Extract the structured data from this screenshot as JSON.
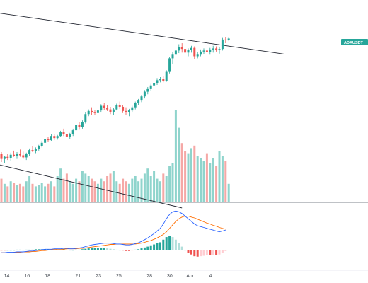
{
  "chart_data": {
    "type": "candlestick",
    "symbol_label": "ADAUSDT",
    "colors": {
      "up": "#26a69a",
      "down": "#ef5350",
      "volume_up": "#8fd4cc",
      "volume_down": "#f5a8a6",
      "macd_line": "#2962ff",
      "signal_line": "#ff6d00",
      "hist_up": "#26a69a",
      "hist_up_light": "#b2dfdb",
      "hist_down": "#ef5350",
      "hist_down_light": "#ffcdd2",
      "trendline": "#1e222d",
      "last_price_tag": "#26a69a",
      "pane_separator": "#555b66"
    },
    "x_axis": {
      "tick_labels": [
        "14",
        "16",
        "18",
        "21",
        "23",
        "25",
        "28",
        "30",
        "Apr",
        "4"
      ],
      "tick_index": [
        0,
        2,
        4,
        7,
        9,
        11,
        14,
        16,
        18,
        20
      ]
    },
    "price_series": [
      {
        "o": 45,
        "h": 49,
        "l": 30,
        "c": 36
      },
      {
        "o": 36,
        "h": 42,
        "l": 28,
        "c": 40
      },
      {
        "o": 40,
        "h": 46,
        "l": 34,
        "c": 38
      },
      {
        "o": 38,
        "h": 48,
        "l": 32,
        "c": 44
      },
      {
        "o": 44,
        "h": 52,
        "l": 40,
        "c": 42
      },
      {
        "o": 42,
        "h": 49,
        "l": 36,
        "c": 46
      },
      {
        "o": 46,
        "h": 54,
        "l": 40,
        "c": 43
      },
      {
        "o": 43,
        "h": 50,
        "l": 36,
        "c": 39
      },
      {
        "o": 39,
        "h": 48,
        "l": 34,
        "c": 45
      },
      {
        "o": 45,
        "h": 56,
        "l": 42,
        "c": 53
      },
      {
        "o": 53,
        "h": 60,
        "l": 49,
        "c": 51
      },
      {
        "o": 51,
        "h": 58,
        "l": 47,
        "c": 55
      },
      {
        "o": 55,
        "h": 63,
        "l": 52,
        "c": 61
      },
      {
        "o": 61,
        "h": 71,
        "l": 58,
        "c": 67
      },
      {
        "o": 67,
        "h": 78,
        "l": 64,
        "c": 74
      },
      {
        "o": 74,
        "h": 79,
        "l": 68,
        "c": 72
      },
      {
        "o": 72,
        "h": 83,
        "l": 70,
        "c": 80
      },
      {
        "o": 80,
        "h": 84,
        "l": 72,
        "c": 76
      },
      {
        "o": 76,
        "h": 82,
        "l": 73,
        "c": 80
      },
      {
        "o": 80,
        "h": 90,
        "l": 78,
        "c": 87
      },
      {
        "o": 87,
        "h": 94,
        "l": 80,
        "c": 84
      },
      {
        "o": 84,
        "h": 88,
        "l": 76,
        "c": 79
      },
      {
        "o": 79,
        "h": 86,
        "l": 74,
        "c": 83
      },
      {
        "o": 83,
        "h": 94,
        "l": 80,
        "c": 91
      },
      {
        "o": 91,
        "h": 104,
        "l": 89,
        "c": 101
      },
      {
        "o": 101,
        "h": 106,
        "l": 92,
        "c": 97
      },
      {
        "o": 97,
        "h": 110,
        "l": 94,
        "c": 107
      },
      {
        "o": 107,
        "h": 125,
        "l": 104,
        "c": 122
      },
      {
        "o": 122,
        "h": 131,
        "l": 118,
        "c": 128
      },
      {
        "o": 128,
        "h": 135,
        "l": 120,
        "c": 126
      },
      {
        "o": 126,
        "h": 130,
        "l": 121,
        "c": 124
      },
      {
        "o": 124,
        "h": 132,
        "l": 119,
        "c": 129
      },
      {
        "o": 129,
        "h": 141,
        "l": 125,
        "c": 138
      },
      {
        "o": 138,
        "h": 144,
        "l": 130,
        "c": 134
      },
      {
        "o": 134,
        "h": 140,
        "l": 128,
        "c": 131
      },
      {
        "o": 131,
        "h": 136,
        "l": 122,
        "c": 126
      },
      {
        "o": 126,
        "h": 134,
        "l": 121,
        "c": 131
      },
      {
        "o": 131,
        "h": 142,
        "l": 129,
        "c": 139
      },
      {
        "o": 139,
        "h": 146,
        "l": 132,
        "c": 136
      },
      {
        "o": 136,
        "h": 140,
        "l": 124,
        "c": 128
      },
      {
        "o": 128,
        "h": 135,
        "l": 120,
        "c": 126
      },
      {
        "o": 126,
        "h": 132,
        "l": 118,
        "c": 129
      },
      {
        "o": 129,
        "h": 138,
        "l": 125,
        "c": 135
      },
      {
        "o": 135,
        "h": 146,
        "l": 131,
        "c": 143
      },
      {
        "o": 143,
        "h": 151,
        "l": 140,
        "c": 148
      },
      {
        "o": 148,
        "h": 159,
        "l": 145,
        "c": 156
      },
      {
        "o": 156,
        "h": 168,
        "l": 152,
        "c": 165
      },
      {
        "o": 165,
        "h": 174,
        "l": 160,
        "c": 170
      },
      {
        "o": 170,
        "h": 180,
        "l": 166,
        "c": 177
      },
      {
        "o": 177,
        "h": 186,
        "l": 172,
        "c": 182
      },
      {
        "o": 182,
        "h": 191,
        "l": 178,
        "c": 187
      },
      {
        "o": 187,
        "h": 193,
        "l": 183,
        "c": 189
      },
      {
        "o": 189,
        "h": 194,
        "l": 183,
        "c": 186
      },
      {
        "o": 186,
        "h": 206,
        "l": 184,
        "c": 203
      },
      {
        "o": 203,
        "h": 232,
        "l": 200,
        "c": 229
      },
      {
        "o": 229,
        "h": 241,
        "l": 218,
        "c": 236
      },
      {
        "o": 236,
        "h": 249,
        "l": 230,
        "c": 244
      },
      {
        "o": 244,
        "h": 256,
        "l": 239,
        "c": 251
      },
      {
        "o": 251,
        "h": 258,
        "l": 240,
        "c": 247
      },
      {
        "o": 247,
        "h": 250,
        "l": 235,
        "c": 240
      },
      {
        "o": 240,
        "h": 248,
        "l": 233,
        "c": 245
      },
      {
        "o": 245,
        "h": 253,
        "l": 240,
        "c": 249
      },
      {
        "o": 249,
        "h": 252,
        "l": 228,
        "c": 233
      },
      {
        "o": 233,
        "h": 241,
        "l": 229,
        "c": 236
      },
      {
        "o": 236,
        "h": 246,
        "l": 233,
        "c": 242
      },
      {
        "o": 242,
        "h": 248,
        "l": 237,
        "c": 244
      },
      {
        "o": 244,
        "h": 250,
        "l": 237,
        "c": 241
      },
      {
        "o": 241,
        "h": 249,
        "l": 236,
        "c": 246
      },
      {
        "o": 246,
        "h": 253,
        "l": 240,
        "c": 248
      },
      {
        "o": 248,
        "h": 252,
        "l": 242,
        "c": 245
      },
      {
        "o": 245,
        "h": 251,
        "l": 238,
        "c": 247
      },
      {
        "o": 247,
        "h": 268,
        "l": 244,
        "c": 265
      },
      {
        "o": 265,
        "h": 269,
        "l": 258,
        "c": 264
      },
      {
        "o": 264,
        "h": 270,
        "l": 262,
        "c": 267
      }
    ],
    "volume_series": [
      18,
      14,
      12,
      16,
      15,
      13,
      14,
      12,
      16,
      20,
      14,
      12,
      13,
      15,
      12,
      14,
      16,
      12,
      20,
      26,
      18,
      22,
      16,
      14,
      18,
      16,
      24,
      22,
      20,
      18,
      16,
      14,
      18,
      16,
      20,
      22,
      24,
      16,
      14,
      18,
      16,
      14,
      18,
      20,
      16,
      18,
      22,
      26,
      20,
      24,
      18,
      16,
      22,
      20,
      28,
      30,
      72,
      58,
      46,
      40,
      38,
      42,
      44,
      36,
      34,
      32,
      38,
      30,
      34,
      28,
      40,
      36,
      32,
      14
    ],
    "macd_series": {
      "macd": [
        -6,
        -6,
        -5,
        -5,
        -5,
        -4,
        -4,
        -4,
        -3,
        -2,
        -2,
        -1,
        0,
        1,
        2,
        2,
        2,
        3,
        3,
        3,
        4,
        4,
        3,
        3,
        4,
        5,
        6,
        8,
        10,
        12,
        13,
        14,
        15,
        16,
        16,
        16,
        15,
        14,
        14,
        13,
        12,
        12,
        13,
        15,
        17,
        20,
        24,
        28,
        33,
        38,
        44,
        50,
        60,
        72,
        82,
        88,
        90,
        88,
        84,
        78,
        72,
        66,
        60,
        56,
        54,
        52,
        50,
        48,
        46,
        44,
        42,
        44,
        46
      ],
      "signal": [
        -6,
        -6,
        -6,
        -6,
        -5,
        -5,
        -5,
        -4,
        -4,
        -4,
        -3,
        -3,
        -2,
        -1,
        -1,
        0,
        1,
        1,
        2,
        2,
        2,
        3,
        3,
        3,
        3,
        4,
        4,
        5,
        6,
        7,
        8,
        9,
        10,
        11,
        12,
        13,
        13,
        14,
        14,
        14,
        14,
        14,
        14,
        14,
        15,
        16,
        18,
        20,
        22,
        25,
        28,
        32,
        36,
        42,
        50,
        58,
        66,
        72,
        76,
        78,
        78,
        76,
        74,
        71,
        68,
        65,
        62,
        60,
        57,
        55,
        52,
        50,
        48
      ],
      "histogram": [
        -1,
        -1,
        0,
        0,
        0,
        1,
        1,
        0,
        1,
        1,
        1,
        2,
        2,
        2,
        2,
        2,
        1,
        2,
        1,
        1,
        2,
        1,
        0,
        0,
        1,
        1,
        2,
        3,
        4,
        5,
        5,
        5,
        5,
        5,
        4,
        3,
        2,
        1,
        0,
        -1,
        -2,
        -2,
        -1,
        1,
        2,
        4,
        6,
        8,
        11,
        13,
        16,
        18,
        24,
        30,
        32,
        30,
        24,
        16,
        8,
        0,
        -6,
        -10,
        -14,
        -15,
        -14,
        -13,
        -12,
        -12,
        -11,
        -11,
        -10,
        -6,
        -2
      ]
    },
    "trendlines": [
      {
        "pane": "price",
        "from": {
          "bar": -8,
          "price": 322
        },
        "to": {
          "bar": 91,
          "price": 237
        }
      },
      {
        "pane": "price",
        "from": {
          "bar": -8,
          "price": 35
        },
        "to": {
          "bar": 58,
          "price": -58
        }
      }
    ],
    "price_range": [
      -50,
      330
    ],
    "volume_max": 100,
    "macd_range": [
      -30,
      100
    ],
    "grid": false,
    "legend": "none"
  }
}
